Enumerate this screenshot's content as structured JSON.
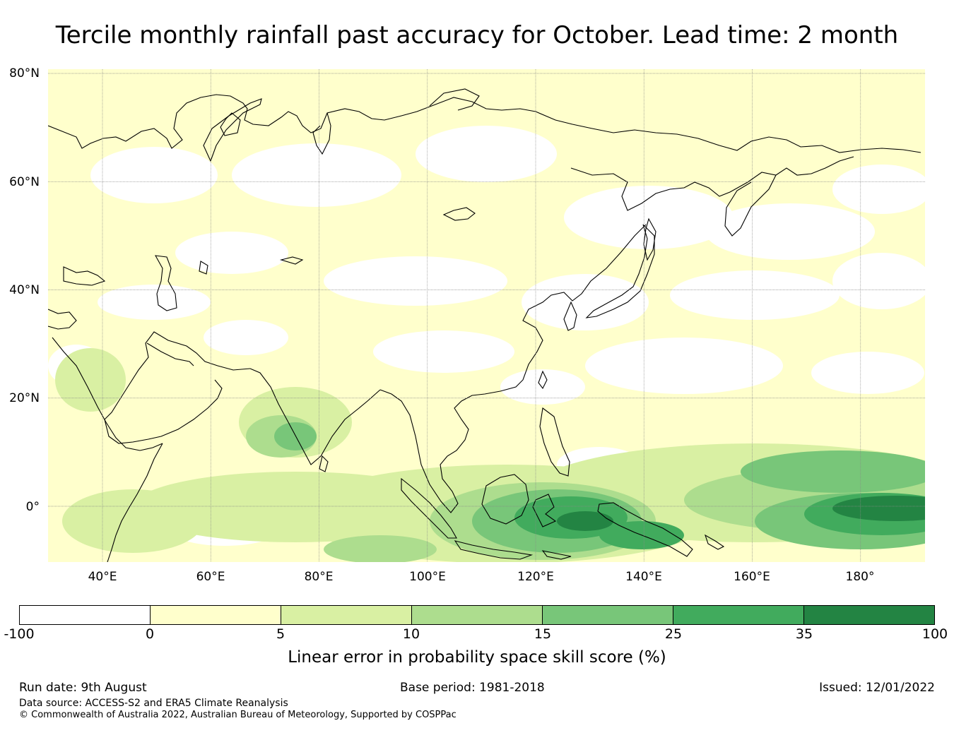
{
  "title": "Tercile monthly rainfall past accuracy for October. Lead time: 2 month",
  "map": {
    "lat_labels": [
      "80°N",
      "60°N",
      "40°N",
      "20°N",
      "0°"
    ],
    "lon_labels": [
      "40°E",
      "60°E",
      "80°E",
      "100°E",
      "120°E",
      "140°E",
      "160°E",
      "180°"
    ],
    "gridlines": true
  },
  "colorbar": {
    "ticks": [
      "-100",
      "0",
      "5",
      "10",
      "15",
      "25",
      "35",
      "100"
    ],
    "colors": [
      "#ffffff",
      "#ffffcc",
      "#d9f0a3",
      "#addd8e",
      "#78c679",
      "#41ab5d",
      "#238443"
    ],
    "label": "Linear error in probability space skill score (%)"
  },
  "footer": {
    "run_date": "Run date: 9th August",
    "base_period": "Base period: 1981-2018",
    "issued": "Issued: 12/01/2022",
    "data_source": "Data source: ACCESS-S2 and ERA5 Climate Reanalysis",
    "copyright": "© Commonwealth of Australia 2022, Australian Bureau of Meteorology, Supported by COSPPac"
  }
}
